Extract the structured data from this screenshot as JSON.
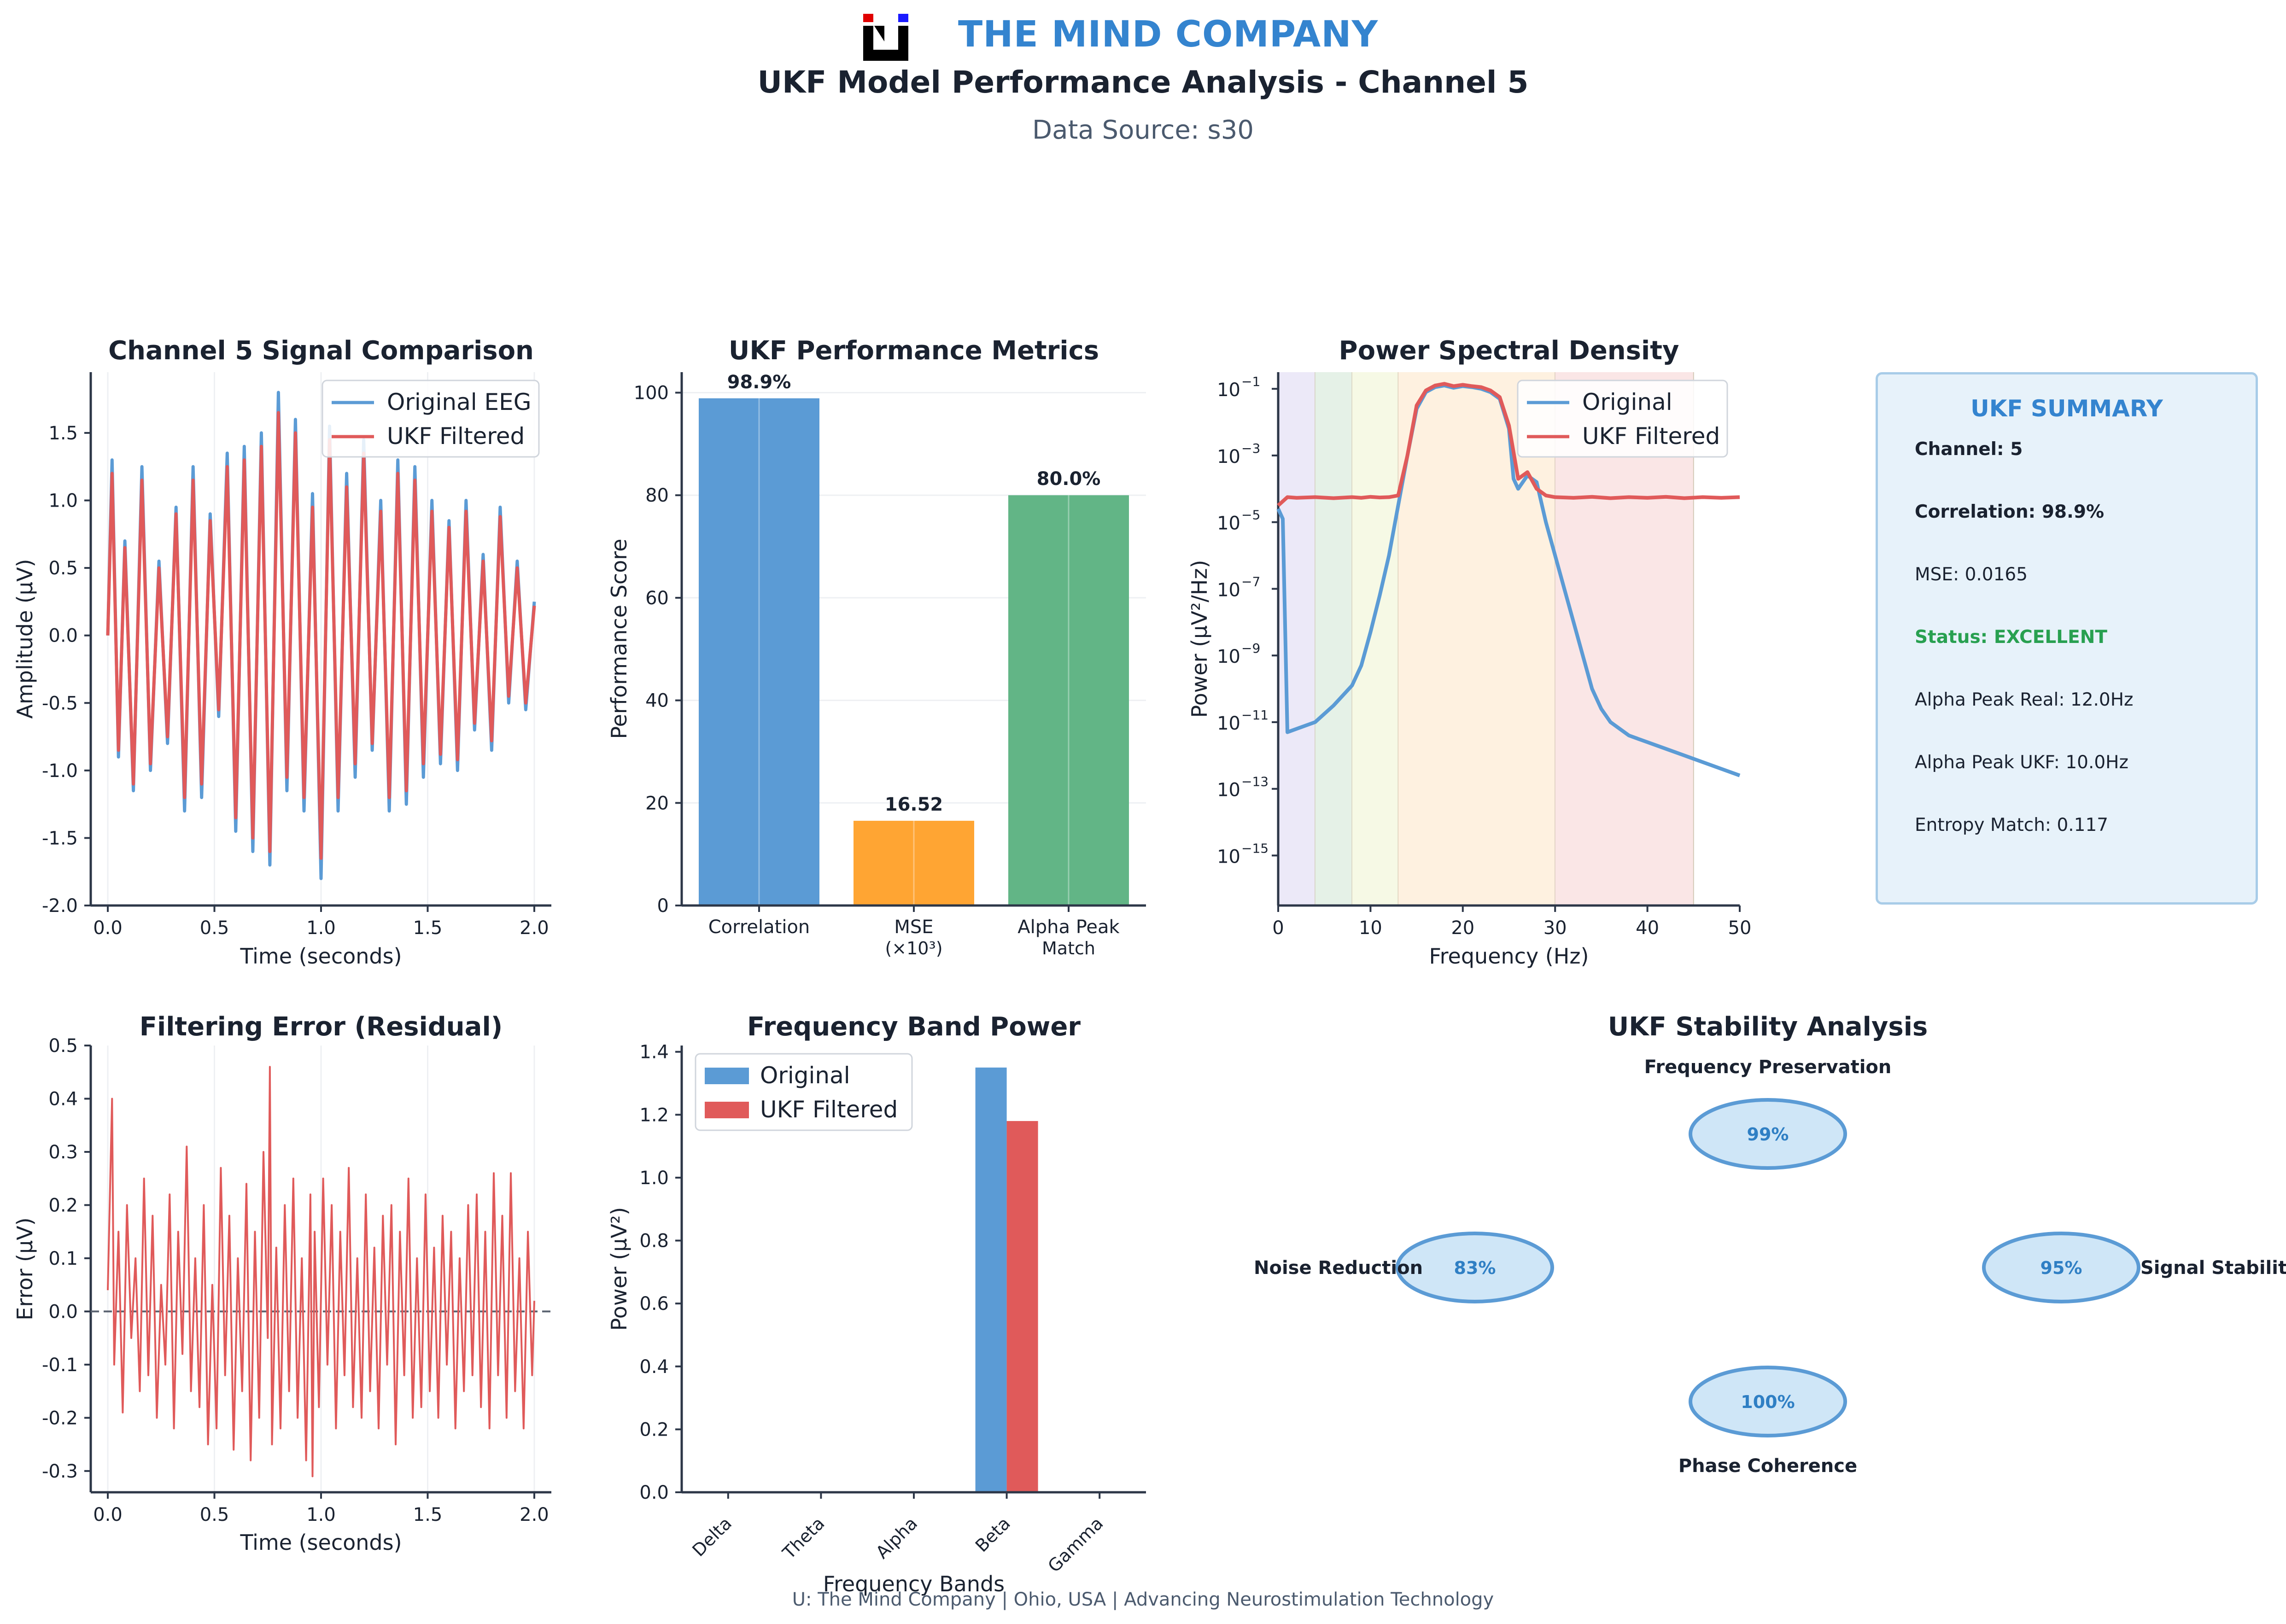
{
  "header": {
    "company": "THE MIND COMPANY",
    "title": "UKF Model Performance Analysis - Channel 5",
    "subtitle": "Data Source: s30",
    "logo_colors": {
      "black": "#000000",
      "red": "#e00000",
      "blue": "#1a1aff"
    }
  },
  "footer": {
    "text": "U: The Mind Company | Ohio, USA | Advancing Neurostimulation Technology"
  },
  "summary": {
    "title": "UKF SUMMARY",
    "channel": "Channel: 5",
    "correlation": "Correlation: 98.9%",
    "mse": "MSE: 0.0165",
    "status": "Status: EXCELLENT",
    "alpha_real": "Alpha Peak Real: 12.0Hz",
    "alpha_ukf": "Alpha Peak UKF: 10.0Hz",
    "entropy": "Entropy Match: 0.117",
    "status_color": "#28a050"
  },
  "colors": {
    "blue": "#5b9bd5",
    "red": "#e05a5a",
    "orange": "#ffa533",
    "green": "#62b586",
    "axis": "#2d3748"
  },
  "chart_data": [
    {
      "id": "signal",
      "type": "line",
      "title": "Channel 5 Signal Comparison",
      "xlabel": "Time (seconds)",
      "ylabel": "Amplitude (μV)",
      "xlim": [
        -0.08,
        2.08
      ],
      "ylim": [
        -2.0,
        1.95
      ],
      "xticks": [
        0.0,
        0.5,
        1.0,
        1.5,
        2.0
      ],
      "xtick_labels": [
        "0.0",
        "0.5",
        "1.0",
        "1.5",
        "2.0"
      ],
      "yticks": [
        -2.0,
        -1.5,
        -1.0,
        -0.5,
        0.0,
        0.5,
        1.0,
        1.5
      ],
      "ytick_labels": [
        "-2.0",
        "-1.5",
        "-1.0",
        "-0.5",
        "0.0",
        "0.5",
        "1.0",
        "1.5"
      ],
      "legend": [
        "Original EEG",
        "UKF Filtered"
      ],
      "legend_position": "top-right",
      "series": [
        {
          "name": "Original EEG",
          "x": [
            0.0,
            0.02,
            0.05,
            0.08,
            0.12,
            0.16,
            0.2,
            0.24,
            0.28,
            0.32,
            0.36,
            0.4,
            0.44,
            0.48,
            0.52,
            0.56,
            0.6,
            0.64,
            0.68,
            0.72,
            0.76,
            0.8,
            0.84,
            0.88,
            0.92,
            0.96,
            1.0,
            1.04,
            1.08,
            1.12,
            1.16,
            1.2,
            1.24,
            1.28,
            1.32,
            1.36,
            1.4,
            1.44,
            1.48,
            1.52,
            1.56,
            1.6,
            1.64,
            1.68,
            1.72,
            1.76,
            1.8,
            1.84,
            1.88,
            1.92,
            1.96,
            2.0
          ],
          "y": [
            0.0,
            1.3,
            -0.9,
            0.7,
            -1.15,
            1.25,
            -1.0,
            0.55,
            -0.8,
            0.95,
            -1.3,
            1.25,
            -1.2,
            0.9,
            -0.6,
            1.35,
            -1.45,
            1.4,
            -1.6,
            1.5,
            -1.7,
            1.8,
            -1.15,
            1.6,
            -1.3,
            1.05,
            -1.8,
            1.55,
            -1.3,
            1.2,
            -1.05,
            1.45,
            -0.85,
            1.0,
            -1.3,
            1.3,
            -1.25,
            1.25,
            -1.05,
            1.0,
            -0.95,
            0.85,
            -1.0,
            1.0,
            -0.7,
            0.6,
            -0.85,
            0.95,
            -0.5,
            0.55,
            -0.55,
            0.25
          ]
        },
        {
          "name": "UKF Filtered",
          "x": [
            0.0,
            0.02,
            0.05,
            0.08,
            0.12,
            0.16,
            0.2,
            0.24,
            0.28,
            0.32,
            0.36,
            0.4,
            0.44,
            0.48,
            0.52,
            0.56,
            0.6,
            0.64,
            0.68,
            0.72,
            0.76,
            0.8,
            0.84,
            0.88,
            0.92,
            0.96,
            1.0,
            1.04,
            1.08,
            1.12,
            1.16,
            1.2,
            1.24,
            1.28,
            1.32,
            1.36,
            1.4,
            1.44,
            1.48,
            1.52,
            1.56,
            1.6,
            1.64,
            1.68,
            1.72,
            1.76,
            1.8,
            1.84,
            1.88,
            1.92,
            1.96,
            2.0
          ],
          "y": [
            0.0,
            1.2,
            -0.85,
            0.65,
            -1.1,
            1.15,
            -0.95,
            0.5,
            -0.75,
            0.9,
            -1.2,
            1.15,
            -1.1,
            0.85,
            -0.55,
            1.25,
            -1.35,
            1.3,
            -1.5,
            1.4,
            -1.6,
            1.65,
            -1.05,
            1.5,
            -1.2,
            0.95,
            -1.65,
            1.45,
            -1.2,
            1.1,
            -0.95,
            1.35,
            -0.8,
            0.92,
            -1.2,
            1.2,
            -1.15,
            1.15,
            -0.95,
            0.92,
            -0.88,
            0.8,
            -0.92,
            0.92,
            -0.65,
            0.55,
            -0.78,
            0.88,
            -0.45,
            0.5,
            -0.5,
            0.22
          ]
        }
      ]
    },
    {
      "id": "metrics",
      "type": "bar",
      "title": "UKF Performance Metrics",
      "ylabel": "Performance Score",
      "ylim": [
        0,
        104
      ],
      "yticks": [
        0,
        20,
        40,
        60,
        80,
        100
      ],
      "ytick_labels": [
        "0",
        "20",
        "40",
        "60",
        "80",
        "100"
      ],
      "categories": [
        "Correlation",
        "MSE",
        "Alpha Peak"
      ],
      "category_sublabels": [
        "",
        "(×10³)",
        "Match"
      ],
      "values": [
        98.9,
        16.52,
        80.0
      ],
      "value_labels": [
        "98.9%",
        "16.52",
        "80.0%"
      ],
      "bar_colors": [
        "#5b9bd5",
        "#ffa533",
        "#62b586"
      ]
    },
    {
      "id": "psd",
      "type": "line",
      "title": "Power Spectral Density",
      "xlabel": "Frequency (Hz)",
      "ylabel": "Power (μV²/Hz)",
      "yscale": "log",
      "xlim": [
        0,
        50
      ],
      "ylim_log10": [
        -16.5,
        -0.5
      ],
      "xticks": [
        0,
        10,
        20,
        30,
        40,
        50
      ],
      "xtick_labels": [
        "0",
        "10",
        "20",
        "30",
        "40",
        "50"
      ],
      "yticks_log10": [
        -1,
        -3,
        -5,
        -7,
        -9,
        -11,
        -13,
        -15
      ],
      "ytick_labels": [
        "10",
        "10",
        "10",
        "10",
        "10",
        "10",
        "10",
        "10"
      ],
      "ytick_exponents": [
        "−1",
        "−3",
        "−5",
        "−7",
        "−9",
        "−11",
        "−13",
        "−15"
      ],
      "legend": [
        "Original",
        "UKF Filtered"
      ],
      "legend_position": "top-right",
      "bands": [
        {
          "from": 0,
          "to": 4,
          "color": "#e6e2f5"
        },
        {
          "from": 4,
          "to": 8,
          "color": "#dcecdf"
        },
        {
          "from": 8,
          "to": 13,
          "color": "#f3f7dc"
        },
        {
          "from": 13,
          "to": 30,
          "color": "#fdecd6"
        },
        {
          "from": 30,
          "to": 45,
          "color": "#f8dede"
        }
      ],
      "series": [
        {
          "name": "Original",
          "x": [
            0,
            0.5,
            1,
            2,
            4,
            6,
            8,
            9,
            10,
            11,
            12,
            13,
            14,
            15,
            16,
            17,
            18,
            19,
            20,
            21,
            22,
            23,
            24,
            25,
            25.5,
            26,
            27,
            28,
            29,
            30,
            31,
            32,
            33,
            34,
            35,
            36,
            38,
            40,
            42,
            44,
            46,
            48,
            50
          ],
          "log10_y": [
            -4.6,
            -4.9,
            -11.3,
            -11.2,
            -11.0,
            -10.5,
            -9.9,
            -9.3,
            -8.3,
            -7.2,
            -6.0,
            -4.5,
            -3.0,
            -1.6,
            -1.1,
            -0.95,
            -0.9,
            -0.97,
            -0.92,
            -0.95,
            -1.0,
            -1.1,
            -1.3,
            -2.2,
            -3.7,
            -4.0,
            -3.6,
            -3.8,
            -5.0,
            -6.0,
            -7.0,
            -8.0,
            -9.0,
            -10.0,
            -10.6,
            -11.0,
            -11.4,
            -11.6,
            -11.8,
            -12.0,
            -12.2,
            -12.4,
            -12.6
          ]
        },
        {
          "name": "UKF Filtered",
          "x": [
            0,
            1,
            2,
            4,
            6,
            8,
            9,
            10,
            11,
            12,
            13,
            14,
            15,
            16,
            17,
            18,
            19,
            20,
            21,
            22,
            23,
            24,
            25,
            26,
            27,
            28,
            29,
            30,
            32,
            34,
            36,
            38,
            40,
            42,
            44,
            46,
            48,
            50
          ],
          "log10_y": [
            -4.5,
            -4.25,
            -4.27,
            -4.25,
            -4.28,
            -4.25,
            -4.27,
            -4.24,
            -4.26,
            -4.25,
            -4.2,
            -3.0,
            -1.5,
            -1.05,
            -0.9,
            -0.85,
            -0.92,
            -0.88,
            -0.92,
            -0.95,
            -1.05,
            -1.25,
            -2.1,
            -3.7,
            -3.5,
            -4.0,
            -4.2,
            -4.25,
            -4.27,
            -4.24,
            -4.28,
            -4.25,
            -4.27,
            -4.24,
            -4.28,
            -4.25,
            -4.27,
            -4.25
          ]
        }
      ]
    },
    {
      "id": "residual",
      "type": "line",
      "title": "Filtering Error (Residual)",
      "xlabel": "Time (seconds)",
      "ylabel": "Error (μV)",
      "xlim": [
        -0.08,
        2.08
      ],
      "ylim": [
        -0.34,
        0.5
      ],
      "xticks": [
        0.0,
        0.5,
        1.0,
        1.5,
        2.0
      ],
      "xtick_labels": [
        "0.0",
        "0.5",
        "1.0",
        "1.5",
        "2.0"
      ],
      "yticks": [
        -0.3,
        -0.2,
        -0.1,
        0.0,
        0.1,
        0.2,
        0.3,
        0.4,
        0.5
      ],
      "ytick_labels": [
        "-0.3",
        "-0.2",
        "-0.1",
        "0.0",
        "0.1",
        "0.2",
        "0.3",
        "0.4",
        "0.5"
      ],
      "series": [
        {
          "name": "Residual",
          "x": [
            0.0,
            0.02,
            0.03,
            0.05,
            0.07,
            0.09,
            0.11,
            0.13,
            0.15,
            0.17,
            0.19,
            0.21,
            0.23,
            0.25,
            0.27,
            0.29,
            0.31,
            0.33,
            0.35,
            0.37,
            0.39,
            0.41,
            0.43,
            0.45,
            0.47,
            0.49,
            0.51,
            0.53,
            0.55,
            0.57,
            0.59,
            0.61,
            0.63,
            0.65,
            0.67,
            0.69,
            0.71,
            0.73,
            0.75,
            0.76,
            0.77,
            0.79,
            0.81,
            0.83,
            0.85,
            0.87,
            0.89,
            0.91,
            0.93,
            0.95,
            0.96,
            0.97,
            0.99,
            1.01,
            1.03,
            1.05,
            1.07,
            1.09,
            1.11,
            1.13,
            1.15,
            1.17,
            1.19,
            1.21,
            1.23,
            1.25,
            1.27,
            1.29,
            1.31,
            1.33,
            1.35,
            1.37,
            1.39,
            1.41,
            1.43,
            1.45,
            1.47,
            1.49,
            1.51,
            1.53,
            1.55,
            1.57,
            1.59,
            1.61,
            1.63,
            1.65,
            1.67,
            1.69,
            1.71,
            1.73,
            1.75,
            1.77,
            1.79,
            1.81,
            1.83,
            1.85,
            1.87,
            1.89,
            1.91,
            1.93,
            1.95,
            1.97,
            1.99,
            2.0
          ],
          "y": [
            0.04,
            0.4,
            -0.1,
            0.15,
            -0.19,
            0.2,
            -0.05,
            0.1,
            -0.15,
            0.25,
            -0.12,
            0.18,
            -0.2,
            0.05,
            -0.1,
            0.22,
            -0.22,
            0.15,
            -0.08,
            0.31,
            -0.15,
            0.1,
            -0.18,
            0.2,
            -0.25,
            0.05,
            -0.22,
            0.27,
            -0.12,
            0.18,
            -0.26,
            0.1,
            -0.15,
            0.24,
            -0.28,
            0.15,
            -0.2,
            0.3,
            -0.05,
            0.46,
            -0.25,
            0.12,
            -0.22,
            0.2,
            -0.15,
            0.25,
            -0.2,
            0.1,
            -0.28,
            0.22,
            -0.31,
            0.15,
            -0.18,
            0.25,
            -0.1,
            0.2,
            -0.22,
            0.15,
            -0.12,
            0.27,
            -0.18,
            0.1,
            -0.2,
            0.22,
            -0.15,
            0.12,
            -0.22,
            0.18,
            -0.1,
            0.2,
            -0.25,
            0.15,
            -0.12,
            0.25,
            -0.2,
            0.1,
            -0.18,
            0.22,
            -0.15,
            0.12,
            -0.2,
            0.18,
            -0.1,
            0.15,
            -0.22,
            0.1,
            -0.15,
            0.2,
            -0.12,
            0.22,
            -0.18,
            0.15,
            -0.22,
            0.26,
            -0.12,
            0.18,
            -0.2,
            0.26,
            -0.15,
            0.1,
            -0.22,
            0.15,
            -0.12,
            0.02
          ]
        }
      ]
    },
    {
      "id": "bands",
      "type": "bar",
      "title": "Frequency Band Power",
      "xlabel": "Frequency Bands",
      "ylabel": "Power (μV²)",
      "ylim": [
        0,
        1.42
      ],
      "yticks": [
        0.0,
        0.2,
        0.4,
        0.6,
        0.8,
        1.0,
        1.2,
        1.4
      ],
      "ytick_labels": [
        "0.0",
        "0.2",
        "0.4",
        "0.6",
        "0.8",
        "1.0",
        "1.2",
        "1.4"
      ],
      "categories": [
        "Delta",
        "Theta",
        "Alpha",
        "Beta",
        "Gamma"
      ],
      "legend": [
        "Original",
        "UKF Filtered"
      ],
      "legend_position": "top-left",
      "series": [
        {
          "name": "Original",
          "values": [
            0.0,
            0.0,
            0.0,
            1.35,
            0.0
          ]
        },
        {
          "name": "UKF Filtered",
          "values": [
            0.0,
            0.0,
            0.0,
            1.18,
            0.0
          ]
        }
      ]
    },
    {
      "id": "stability",
      "type": "diagram",
      "title": "UKF Stability Analysis",
      "nodes": [
        {
          "label": "Frequency Preservation",
          "value": "99%",
          "position": "top"
        },
        {
          "label": "Noise Reduction",
          "value": "83%",
          "position": "left"
        },
        {
          "label": "Signal Stability",
          "value": "95%",
          "position": "right"
        },
        {
          "label": "Phase Coherence",
          "value": "100%",
          "position": "bottom"
        }
      ]
    }
  ]
}
